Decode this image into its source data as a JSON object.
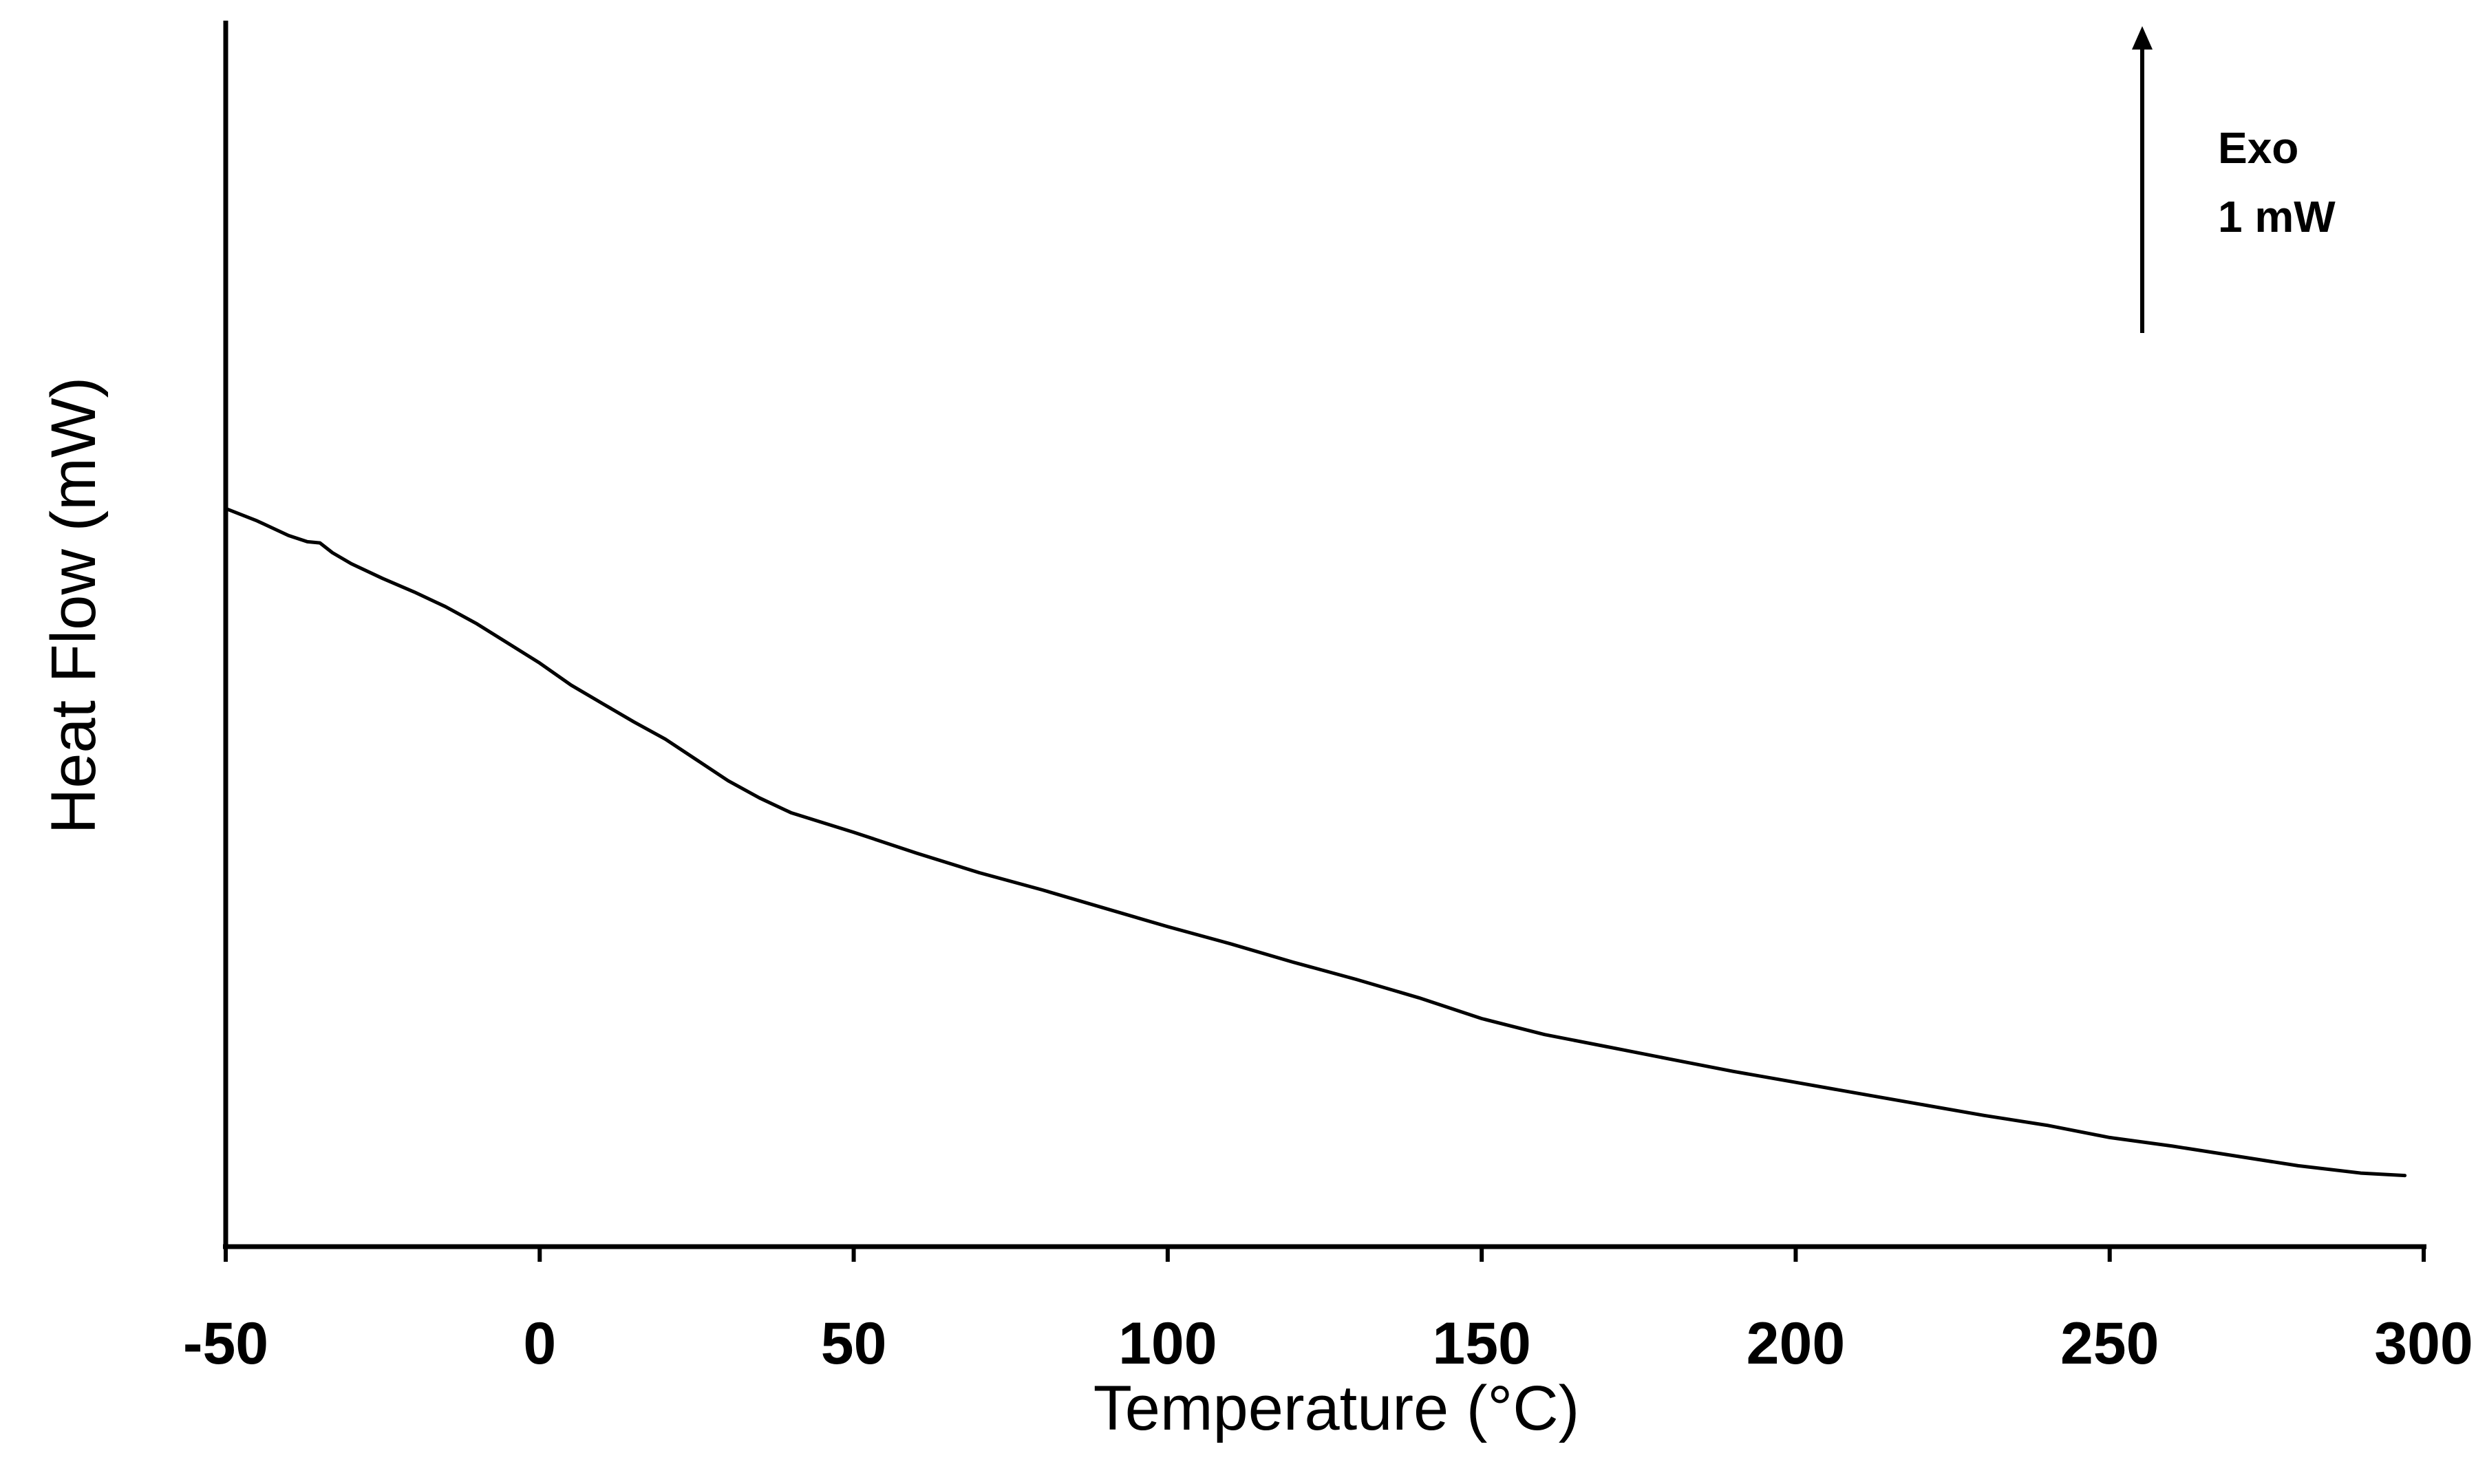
{
  "chart_data": {
    "type": "line",
    "title": "",
    "xlabel": "Temperature (°C)",
    "ylabel": "Heat Flow (mW)",
    "xlim": [
      -50,
      300
    ],
    "ylim": [
      -2,
      8
    ],
    "x_ticks": [
      -50,
      0,
      50,
      100,
      150,
      200,
      250,
      300
    ],
    "x_tick_labels": [
      "-50",
      "0",
      "50",
      "100",
      "150",
      "200",
      "250",
      "300"
    ],
    "y_ticks_shown": false,
    "grid": false,
    "legend": "none",
    "line_color": "#000000",
    "annotations": {
      "direction": "Exo",
      "scale": "1 mW",
      "scale_value": 1
    },
    "series": [
      {
        "x": [
          -50,
          -45,
          -40,
          -37,
          -35,
          -33,
          -30,
          -25,
          -20,
          -15,
          -10,
          -5,
          0,
          5,
          10,
          15,
          20,
          25,
          30,
          35,
          40,
          50,
          60,
          70,
          80,
          90,
          100,
          110,
          120,
          130,
          140,
          150,
          160,
          170,
          180,
          190,
          200,
          210,
          220,
          230,
          240,
          250,
          260,
          270,
          280,
          290,
          297
        ],
        "y": [
          4.02,
          3.92,
          3.8,
          3.75,
          3.74,
          3.66,
          3.57,
          3.45,
          3.34,
          3.22,
          3.08,
          2.92,
          2.76,
          2.58,
          2.43,
          2.28,
          2.14,
          1.97,
          1.8,
          1.66,
          1.54,
          1.38,
          1.21,
          1.05,
          0.91,
          0.76,
          0.61,
          0.47,
          0.32,
          0.18,
          0.03,
          -0.14,
          -0.27,
          -0.37,
          -0.47,
          -0.57,
          -0.66,
          -0.75,
          -0.84,
          -0.93,
          -1.01,
          -1.11,
          -1.18,
          -1.26,
          -1.34,
          -1.4,
          -1.42
        ]
      }
    ]
  }
}
